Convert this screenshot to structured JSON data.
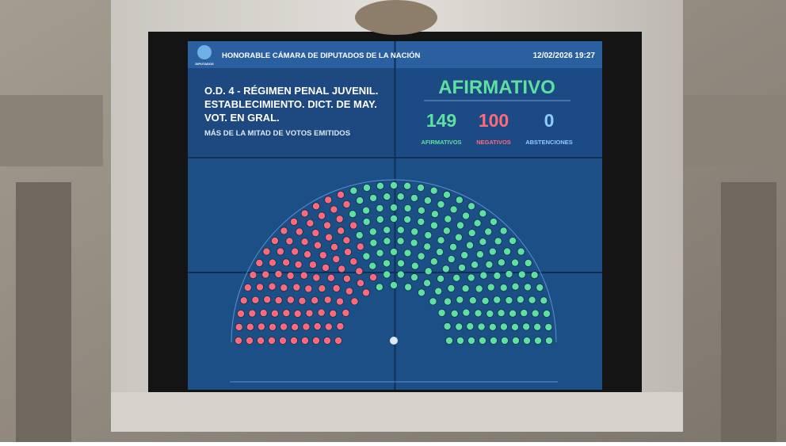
{
  "header": {
    "logo": "DIPUTADOS",
    "title": "HONORABLE CÁMARA DE DIPUTADOS DE LA NACIÓN",
    "datetime": "12/02/2026 19:27"
  },
  "motion": {
    "lines": [
      "O.D. 4 - RÉGIMEN PENAL JUVENIL.",
      "ESTABLECIMIENTO. DICT. DE MAY.",
      "VOT. EN GRAL."
    ],
    "majority": "MÁS DE LA MITAD DE VOTOS EMITIDOS"
  },
  "result": "AFIRMATIVO",
  "votes": [
    {
      "label": "AFIRMATIVOS",
      "count": 149,
      "color": "#5fe0a0"
    },
    {
      "label": "NEGATIVOS",
      "count": 100,
      "color": "#ff6a7a"
    },
    {
      "label": "ABSTENCIONES",
      "count": 0,
      "color": "#8ecbff"
    }
  ]
}
